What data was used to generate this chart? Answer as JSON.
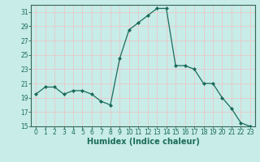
{
  "x": [
    0,
    1,
    2,
    3,
    4,
    5,
    6,
    7,
    8,
    9,
    10,
    11,
    12,
    13,
    14,
    15,
    16,
    17,
    18,
    19,
    20,
    21,
    22,
    23
  ],
  "y": [
    19.5,
    20.5,
    20.5,
    19.5,
    20.0,
    20.0,
    19.5,
    18.5,
    18.0,
    24.5,
    28.5,
    29.5,
    30.5,
    31.5,
    31.5,
    23.5,
    23.5,
    23.0,
    21.0,
    21.0,
    19.0,
    17.5,
    15.5,
    15.0
  ],
  "xlabel": "Humidex (Indice chaleur)",
  "ylim": [
    15,
    32
  ],
  "xlim": [
    -0.5,
    23.5
  ],
  "yticks": [
    15,
    17,
    19,
    21,
    23,
    25,
    27,
    29,
    31
  ],
  "xticks": [
    0,
    1,
    2,
    3,
    4,
    5,
    6,
    7,
    8,
    9,
    10,
    11,
    12,
    13,
    14,
    15,
    16,
    17,
    18,
    19,
    20,
    21,
    22,
    23
  ],
  "line_color": "#1a6b5a",
  "marker": "D",
  "marker_size": 2.0,
  "bg_color": "#c8ece8",
  "grid_color": "#e8c8c8",
  "axis_color": "#336655",
  "tick_color": "#1a6b5a",
  "label_color": "#1a6b5a",
  "xlabel_fontsize": 7.0,
  "tick_fontsize": 5.5
}
